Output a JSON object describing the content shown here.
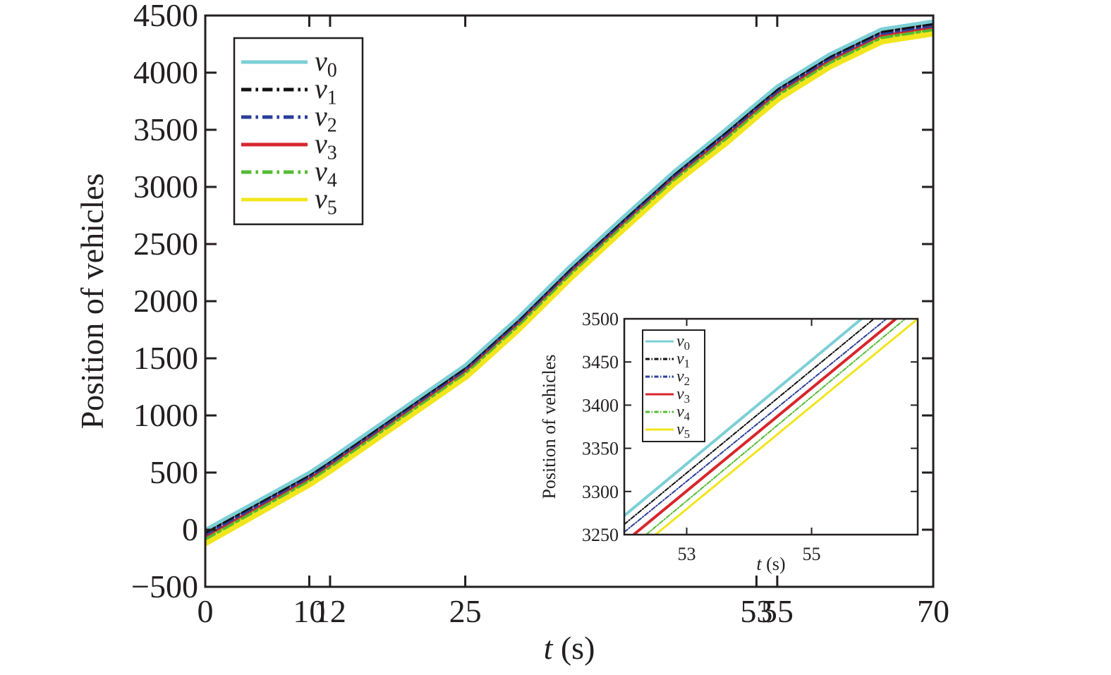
{
  "chart_data": [
    {
      "type": "line",
      "title": "",
      "xlabel": "t (s)",
      "ylabel": "Position of vehicles",
      "xlim": [
        0,
        70
      ],
      "ylim": [
        -500,
        4500
      ],
      "xticks": [
        0,
        10,
        12,
        25,
        53,
        55,
        70
      ],
      "yticks": [
        -500,
        0,
        500,
        1000,
        1500,
        2000,
        2500,
        3000,
        3500,
        4000,
        4500
      ],
      "legend_position": "top-left",
      "grid": false,
      "series": [
        {
          "name": "v0",
          "color": "#7ccfd6",
          "dash": "solid",
          "width": 5,
          "x": [
            0,
            10,
            12,
            25,
            30,
            35,
            40,
            45,
            50,
            53,
            55,
            60,
            65,
            70
          ],
          "y": [
            0,
            500,
            620,
            1440,
            1850,
            2300,
            2720,
            3130,
            3500,
            3730,
            3880,
            4160,
            4380,
            4450
          ]
        },
        {
          "name": "v1",
          "color": "#111111",
          "dash": "dash-dot",
          "width": 5,
          "x": [
            0,
            10,
            12,
            25,
            30,
            35,
            40,
            45,
            50,
            53,
            55,
            60,
            65,
            70
          ],
          "y": [
            -20,
            483,
            603,
            1423,
            1833,
            2283,
            2703,
            3113,
            3480,
            3711,
            3861,
            4142,
            4362,
            4432
          ]
        },
        {
          "name": "v2",
          "color": "#2b3e9a",
          "dash": "dash-dot",
          "width": 5,
          "x": [
            0,
            10,
            12,
            25,
            30,
            35,
            40,
            45,
            50,
            53,
            55,
            60,
            65,
            70
          ],
          "y": [
            -40,
            466,
            586,
            1406,
            1816,
            2266,
            2686,
            3096,
            3460,
            3692,
            3842,
            4124,
            4344,
            4414
          ]
        },
        {
          "name": "v3",
          "color": "#d7262c",
          "dash": "solid",
          "width": 3,
          "x": [
            0,
            10,
            12,
            25,
            30,
            35,
            40,
            45,
            50,
            53,
            55,
            60,
            65,
            70
          ],
          "y": [
            -60,
            449,
            569,
            1389,
            1799,
            2249,
            2669,
            3079,
            3440,
            3673,
            3823,
            4106,
            4326,
            4396
          ]
        },
        {
          "name": "v4",
          "color": "#55bb33",
          "dash": "dash-dot",
          "width": 5,
          "x": [
            0,
            10,
            12,
            25,
            30,
            35,
            40,
            45,
            50,
            53,
            55,
            60,
            65,
            70
          ],
          "y": [
            -80,
            432,
            552,
            1372,
            1782,
            2232,
            2652,
            3062,
            3420,
            3654,
            3804,
            4088,
            4308,
            4378
          ]
        },
        {
          "name": "v5",
          "color": "#f2e51c",
          "dash": "solid",
          "width": 14,
          "x": [
            0,
            10,
            12,
            25,
            30,
            35,
            40,
            45,
            50,
            53,
            55,
            60,
            65,
            70
          ],
          "y": [
            -100,
            415,
            535,
            1355,
            1765,
            2215,
            2635,
            3045,
            3400,
            3635,
            3785,
            4070,
            4290,
            4360
          ]
        }
      ]
    },
    {
      "type": "line",
      "title": "",
      "xlabel": "t (s)",
      "ylabel": "Position of vehicles",
      "xlim": [
        52,
        56.7
      ],
      "ylim": [
        3250,
        3500
      ],
      "xticks": [
        53,
        55
      ],
      "yticks": [
        3250,
        3300,
        3350,
        3400,
        3450,
        3500
      ],
      "legend_position": "top-left",
      "grid": false,
      "series": [
        {
          "name": "v0",
          "color": "#7ccfd6",
          "dash": "solid",
          "width": 4,
          "x": [
            52,
            55.8
          ],
          "y": [
            3272,
            3500
          ]
        },
        {
          "name": "v1",
          "color": "#111111",
          "dash": "dash-dot",
          "width": 2,
          "x": [
            52,
            56.0
          ],
          "y": [
            3262,
            3500
          ]
        },
        {
          "name": "v2",
          "color": "#2b3e9a",
          "dash": "dash-dot",
          "width": 2,
          "x": [
            52,
            56.2
          ],
          "y": [
            3253,
            3500
          ]
        },
        {
          "name": "v3",
          "color": "#d7262c",
          "dash": "solid",
          "width": 4,
          "x": [
            52.15,
            56.35
          ],
          "y": [
            3250,
            3500
          ]
        },
        {
          "name": "v4",
          "color": "#55bb33",
          "dash": "dash-dot",
          "width": 2,
          "x": [
            52.35,
            56.5
          ],
          "y": [
            3250,
            3500
          ]
        },
        {
          "name": "v5",
          "color": "#f2e51c",
          "dash": "solid",
          "width": 3,
          "x": [
            52.5,
            56.7
          ],
          "y": [
            3250,
            3500
          ]
        }
      ]
    }
  ]
}
